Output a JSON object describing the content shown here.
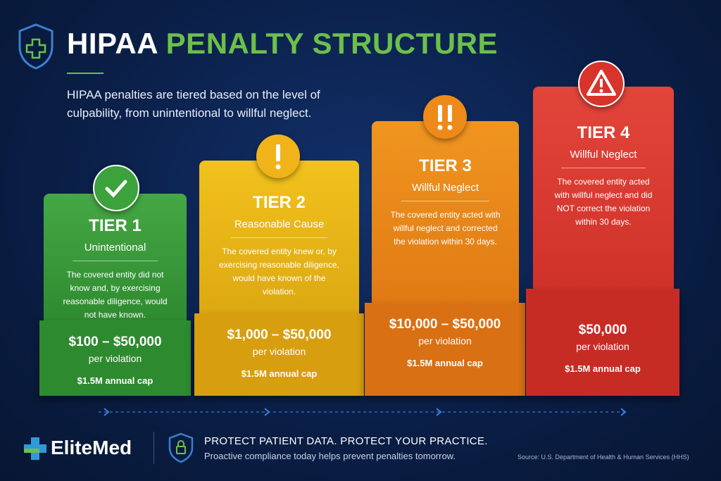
{
  "header": {
    "title_lead": "HIPAA",
    "title_rest": "PENALTY STRUCTURE",
    "intro": "HIPAA penalties are tiered based on the level of culpability, from unintentional to willful neglect."
  },
  "tiers": [
    {
      "label": "TIER 1",
      "name": "Unintentional",
      "description": "The covered entity did not know and, by exercising reasonable diligence, would not have known.",
      "penalty": "$100 – $50,000",
      "unit": "per violation",
      "cap": "$1.5M annual cap"
    },
    {
      "label": "TIER 2",
      "name": "Reasonable Cause",
      "description": "The covered entity knew or, by exercising reasonable diligence, would have known of the violation.",
      "penalty": "$1,000 – $50,000",
      "unit": "per violation",
      "cap": "$1.5M annual cap"
    },
    {
      "label": "TIER 3",
      "name": "Willful Neglect",
      "description": "The covered entity acted with willful neglect and corrected the violation within 30 days.",
      "penalty": "$10,000 – $50,000",
      "unit": "per violation",
      "cap": "$1.5M annual cap"
    },
    {
      "label": "TIER 4",
      "name": "Willful Neglect",
      "description": "The covered entity acted with willful neglect and did NOT correct the violation within 30 days.",
      "penalty": "$50,000",
      "unit": "per violation",
      "cap": "$1.5M annual cap"
    }
  ],
  "footer": {
    "brand": "EliteMed",
    "headline": "PROTECT PATIENT DATA. PROTECT YOUR PRACTICE.",
    "subline": "Proactive compliance today helps prevent penalties tomorrow.",
    "source": "Source: U.S. Department of Health & Human Services (HHS)"
  }
}
